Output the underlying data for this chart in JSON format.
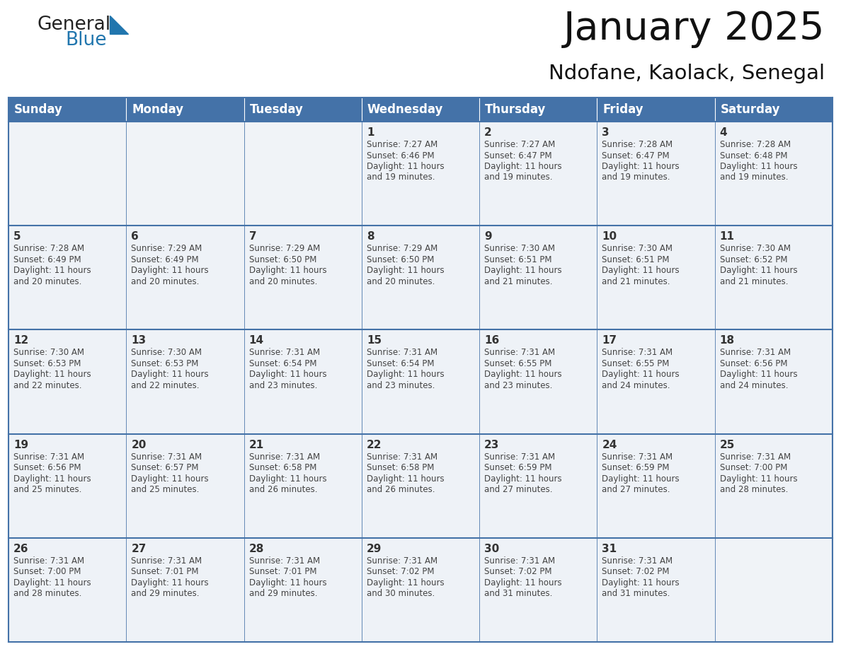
{
  "title": "January 2025",
  "subtitle": "Ndofane, Kaolack, Senegal",
  "header_bg_color": "#4472a8",
  "header_text_color": "#ffffff",
  "cell_bg_filled": "#eef2f7",
  "cell_bg_empty": "#f0f3f7",
  "text_color": "#444444",
  "border_color": "#4472a8",
  "logo_general_color": "#222222",
  "logo_blue_color": "#2176ae",
  "logo_triangle_color": "#2176ae",
  "days_of_week": [
    "Sunday",
    "Monday",
    "Tuesday",
    "Wednesday",
    "Thursday",
    "Friday",
    "Saturday"
  ],
  "weeks": [
    [
      {
        "day": "",
        "info": ""
      },
      {
        "day": "",
        "info": ""
      },
      {
        "day": "",
        "info": ""
      },
      {
        "day": "1",
        "info": "Sunrise: 7:27 AM\nSunset: 6:46 PM\nDaylight: 11 hours\nand 19 minutes."
      },
      {
        "day": "2",
        "info": "Sunrise: 7:27 AM\nSunset: 6:47 PM\nDaylight: 11 hours\nand 19 minutes."
      },
      {
        "day": "3",
        "info": "Sunrise: 7:28 AM\nSunset: 6:47 PM\nDaylight: 11 hours\nand 19 minutes."
      },
      {
        "day": "4",
        "info": "Sunrise: 7:28 AM\nSunset: 6:48 PM\nDaylight: 11 hours\nand 19 minutes."
      }
    ],
    [
      {
        "day": "5",
        "info": "Sunrise: 7:28 AM\nSunset: 6:49 PM\nDaylight: 11 hours\nand 20 minutes."
      },
      {
        "day": "6",
        "info": "Sunrise: 7:29 AM\nSunset: 6:49 PM\nDaylight: 11 hours\nand 20 minutes."
      },
      {
        "day": "7",
        "info": "Sunrise: 7:29 AM\nSunset: 6:50 PM\nDaylight: 11 hours\nand 20 minutes."
      },
      {
        "day": "8",
        "info": "Sunrise: 7:29 AM\nSunset: 6:50 PM\nDaylight: 11 hours\nand 20 minutes."
      },
      {
        "day": "9",
        "info": "Sunrise: 7:30 AM\nSunset: 6:51 PM\nDaylight: 11 hours\nand 21 minutes."
      },
      {
        "day": "10",
        "info": "Sunrise: 7:30 AM\nSunset: 6:51 PM\nDaylight: 11 hours\nand 21 minutes."
      },
      {
        "day": "11",
        "info": "Sunrise: 7:30 AM\nSunset: 6:52 PM\nDaylight: 11 hours\nand 21 minutes."
      }
    ],
    [
      {
        "day": "12",
        "info": "Sunrise: 7:30 AM\nSunset: 6:53 PM\nDaylight: 11 hours\nand 22 minutes."
      },
      {
        "day": "13",
        "info": "Sunrise: 7:30 AM\nSunset: 6:53 PM\nDaylight: 11 hours\nand 22 minutes."
      },
      {
        "day": "14",
        "info": "Sunrise: 7:31 AM\nSunset: 6:54 PM\nDaylight: 11 hours\nand 23 minutes."
      },
      {
        "day": "15",
        "info": "Sunrise: 7:31 AM\nSunset: 6:54 PM\nDaylight: 11 hours\nand 23 minutes."
      },
      {
        "day": "16",
        "info": "Sunrise: 7:31 AM\nSunset: 6:55 PM\nDaylight: 11 hours\nand 23 minutes."
      },
      {
        "day": "17",
        "info": "Sunrise: 7:31 AM\nSunset: 6:55 PM\nDaylight: 11 hours\nand 24 minutes."
      },
      {
        "day": "18",
        "info": "Sunrise: 7:31 AM\nSunset: 6:56 PM\nDaylight: 11 hours\nand 24 minutes."
      }
    ],
    [
      {
        "day": "19",
        "info": "Sunrise: 7:31 AM\nSunset: 6:56 PM\nDaylight: 11 hours\nand 25 minutes."
      },
      {
        "day": "20",
        "info": "Sunrise: 7:31 AM\nSunset: 6:57 PM\nDaylight: 11 hours\nand 25 minutes."
      },
      {
        "day": "21",
        "info": "Sunrise: 7:31 AM\nSunset: 6:58 PM\nDaylight: 11 hours\nand 26 minutes."
      },
      {
        "day": "22",
        "info": "Sunrise: 7:31 AM\nSunset: 6:58 PM\nDaylight: 11 hours\nand 26 minutes."
      },
      {
        "day": "23",
        "info": "Sunrise: 7:31 AM\nSunset: 6:59 PM\nDaylight: 11 hours\nand 27 minutes."
      },
      {
        "day": "24",
        "info": "Sunrise: 7:31 AM\nSunset: 6:59 PM\nDaylight: 11 hours\nand 27 minutes."
      },
      {
        "day": "25",
        "info": "Sunrise: 7:31 AM\nSunset: 7:00 PM\nDaylight: 11 hours\nand 28 minutes."
      }
    ],
    [
      {
        "day": "26",
        "info": "Sunrise: 7:31 AM\nSunset: 7:00 PM\nDaylight: 11 hours\nand 28 minutes."
      },
      {
        "day": "27",
        "info": "Sunrise: 7:31 AM\nSunset: 7:01 PM\nDaylight: 11 hours\nand 29 minutes."
      },
      {
        "day": "28",
        "info": "Sunrise: 7:31 AM\nSunset: 7:01 PM\nDaylight: 11 hours\nand 29 minutes."
      },
      {
        "day": "29",
        "info": "Sunrise: 7:31 AM\nSunset: 7:02 PM\nDaylight: 11 hours\nand 30 minutes."
      },
      {
        "day": "30",
        "info": "Sunrise: 7:31 AM\nSunset: 7:02 PM\nDaylight: 11 hours\nand 31 minutes."
      },
      {
        "day": "31",
        "info": "Sunrise: 7:31 AM\nSunset: 7:02 PM\nDaylight: 11 hours\nand 31 minutes."
      },
      {
        "day": "",
        "info": ""
      }
    ]
  ]
}
